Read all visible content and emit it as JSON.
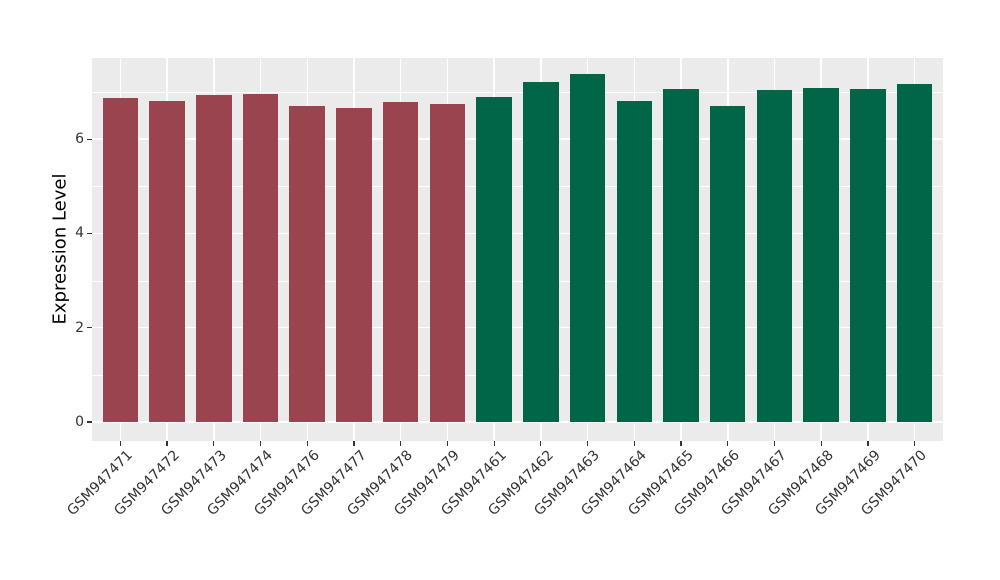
{
  "figure": {
    "background": "#FFFFFF",
    "panel_background": "#EBEBEB",
    "gridline_color": "#FFFFFF",
    "tick_color": "#333333",
    "axis_text_color": "#333333",
    "axis_title_color": "#000000",
    "red_bar_color": "#9A4450",
    "green_bar_color": "#006647"
  },
  "chart_data": {
    "type": "bar",
    "title": "",
    "xlabel": "",
    "ylabel": "Expression Level",
    "ylim": [
      0,
      7.72
    ],
    "yticks": [
      0,
      2,
      4,
      6
    ],
    "yticks_minor": [
      1,
      3,
      5,
      7
    ],
    "grid": true,
    "legend_position": "none",
    "categories": [
      "GSM947471",
      "GSM947472",
      "GSM947473",
      "GSM947474",
      "GSM947476",
      "GSM947477",
      "GSM947478",
      "GSM947479",
      "GSM947461",
      "GSM947462",
      "GSM947463",
      "GSM947464",
      "GSM947465",
      "GSM947466",
      "GSM947467",
      "GSM947468",
      "GSM947469",
      "GSM947470"
    ],
    "values": [
      6.88,
      6.81,
      6.93,
      6.95,
      6.7,
      6.66,
      6.78,
      6.75,
      6.9,
      7.21,
      7.38,
      6.81,
      7.07,
      6.71,
      7.05,
      7.09,
      7.07,
      7.16
    ],
    "bar_colors": [
      "#9A4450",
      "#9A4450",
      "#9A4450",
      "#9A4450",
      "#9A4450",
      "#9A4450",
      "#9A4450",
      "#9A4450",
      "#006647",
      "#006647",
      "#006647",
      "#006647",
      "#006647",
      "#006647",
      "#006647",
      "#006647",
      "#006647",
      "#006647"
    ]
  }
}
